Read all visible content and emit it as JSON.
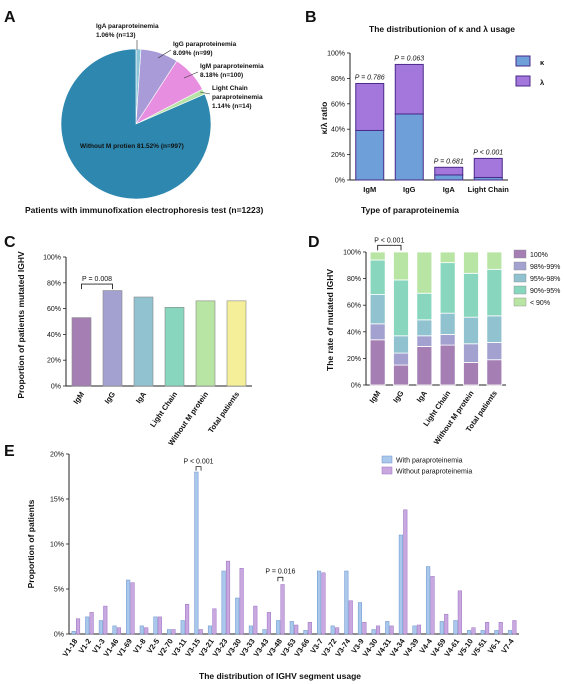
{
  "panels": {
    "A": {
      "letter": "A",
      "caption": "Patients with immunofixation electrophoresis test (n=1223)",
      "chart_data": {
        "type": "pie",
        "slices": [
          {
            "name": "Without M protien",
            "percent": 81.52,
            "n": 997,
            "label": "Without M protien 81.52% (n=997)",
            "color": "#2e87ae"
          },
          {
            "name": "IgA paraproteinemia",
            "percent": 1.06,
            "n": 13,
            "label1": "IgA paraproteinemia",
            "label2": "1.06% (n=13)",
            "color": "#8ec6d8"
          },
          {
            "name": "IgG paraproteinemia",
            "percent": 8.09,
            "n": 99,
            "label1": "IgG paraproteinemia",
            "label2": "8.09% (n=99)",
            "color": "#a99ad8"
          },
          {
            "name": "IgM paraproteinemia",
            "percent": 8.18,
            "n": 100,
            "label1": "IgM paraproteinemia",
            "label2": "8.18% (n=100)",
            "color": "#e88ee0"
          },
          {
            "name": "Light Chain paraproteinemia",
            "percent": 1.14,
            "n": 14,
            "label1": "Light Chain",
            "label2": "paraproteinemia",
            "label3": "1.14% (n=14)",
            "color": "#b7e3a6"
          }
        ]
      }
    },
    "B": {
      "letter": "B",
      "chart_data": {
        "type": "bar",
        "stacked": true,
        "title": "The distributionion of κ and λ usage",
        "xlabel": "Type of paraproteinemia",
        "ylabel": "κ/λ ratio",
        "categories": [
          "IgM",
          "IgG",
          "IgA",
          "Light Chain"
        ],
        "series": [
          {
            "name": "κ",
            "values": [
              39,
              52,
              4,
              2
            ],
            "color": "#6e9fd8"
          },
          {
            "name": "λ",
            "values": [
              37,
              39,
              6,
              15
            ],
            "color": "#a477dc"
          }
        ],
        "pvalues": [
          "P = 0.786",
          "P = 0.063",
          "P = 0.681",
          "P < 0.001"
        ],
        "ylim": [
          0,
          100
        ],
        "yticks": [
          "0%",
          "20%",
          "40%",
          "60%",
          "80%",
          "100%"
        ]
      }
    },
    "C": {
      "letter": "C",
      "chart_data": {
        "type": "bar",
        "ylabel": "Proportion of patients mutated IGHV",
        "categories": [
          "IgM",
          "IgG",
          "IgA",
          "Light Chain",
          "Without M protein",
          "Total patients"
        ],
        "values": [
          53,
          74,
          69,
          61,
          66,
          66
        ],
        "colors": [
          "#a57fb4",
          "#a2a1cf",
          "#91c2cf",
          "#87d6bd",
          "#b8e5a4",
          "#f6ef9a"
        ],
        "annotation": "P = 0.008",
        "ylim": [
          0,
          100
        ],
        "yticks": [
          "0%",
          "20%",
          "40%",
          "60%",
          "80%",
          "100%"
        ]
      }
    },
    "D": {
      "letter": "D",
      "chart_data": {
        "type": "bar",
        "stacked": true,
        "ylabel": "The rate of mutated IGHV",
        "categories": [
          "IgM",
          "IgG",
          "IgA",
          "Light Chain",
          "Without M protein",
          "Total patients"
        ],
        "series": [
          {
            "name": "100%",
            "values": [
              34,
              15,
              29,
              30,
              17,
              19
            ],
            "color": "#a57fb4"
          },
          {
            "name": "98%-99%",
            "values": [
              12,
              9,
              8,
              8,
              14,
              13
            ],
            "color": "#a2a1cf"
          },
          {
            "name": "95%-98%",
            "values": [
              22,
              13,
              12,
              16,
              20,
              20
            ],
            "color": "#91c2cf"
          },
          {
            "name": "90%-95%",
            "values": [
              26,
              42,
              20,
              38,
              33,
              35
            ],
            "color": "#87d6bd"
          },
          {
            "name": "< 90%",
            "values": [
              6,
              21,
              31,
              8,
              16,
              13
            ],
            "color": "#b8e5a4"
          }
        ],
        "annotation": "P < 0.001",
        "ylim": [
          0,
          100
        ],
        "yticks": [
          "0%",
          "20%",
          "40%",
          "60%",
          "80%",
          "100%"
        ]
      }
    },
    "E": {
      "letter": "E",
      "chart_data": {
        "type": "bar",
        "xlabel": "The distribution of IGHV segment usage",
        "ylabel": "Proportion of patients",
        "categories": [
          "V1-18",
          "V1-2",
          "V1-3",
          "V1-46",
          "V1-69",
          "V1-8",
          "V2-5",
          "V2-70",
          "V3-11",
          "V3-15",
          "V3-21",
          "V3-23",
          "V3-30",
          "V3-33",
          "V3-43",
          "V3-48",
          "V3-53",
          "V3-66",
          "V3-7",
          "V3-72",
          "V3-74",
          "V3-9",
          "V4-30",
          "V4-31",
          "V4-34",
          "V4-39",
          "V4-4",
          "V4-59",
          "V4-61",
          "V5-10",
          "V5-51",
          "V6-1",
          "V7-4"
        ],
        "series": [
          {
            "name": "With paraproteinemia",
            "color": "#a9c8ec",
            "values": [
              0.3,
              1.9,
              1.5,
              0.9,
              6.0,
              0.9,
              1.9,
              0.5,
              1.5,
              18.0,
              0.9,
              7.0,
              4.0,
              0.9,
              0.5,
              1.5,
              1.4,
              0.4,
              7.0,
              0.9,
              7.0,
              3.5,
              0.5,
              1.4,
              11.0,
              0.9,
              7.5,
              1.4,
              1.5,
              0.4,
              0.4,
              0.4,
              0.4
            ]
          },
          {
            "name": "Without paraproteinemia",
            "color": "#c9a8df",
            "values": [
              1.7,
              2.4,
              3.1,
              0.7,
              5.7,
              0.7,
              1.9,
              0.5,
              3.3,
              0.5,
              2.8,
              8.1,
              7.3,
              3.1,
              2.4,
              5.5,
              1.0,
              1.3,
              6.8,
              0.7,
              3.7,
              1.3,
              0.9,
              0.9,
              13.8,
              1.0,
              6.4,
              2.2,
              4.8,
              0.7,
              1.3,
              1.3,
              1.5
            ]
          }
        ],
        "annotations": [
          "P < 0.001",
          "P = 0.016"
        ],
        "ylim": [
          0,
          20
        ],
        "yticks": [
          "0%",
          "5%",
          "10%",
          "15%",
          "20%"
        ]
      }
    }
  }
}
